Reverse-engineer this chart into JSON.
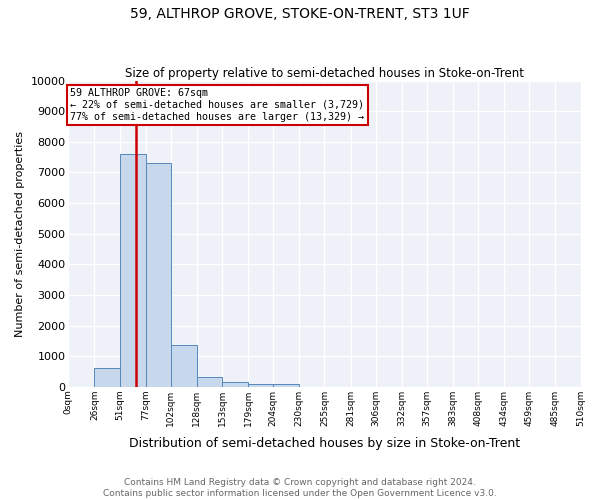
{
  "title": "59, ALTHROP GROVE, STOKE-ON-TRENT, ST3 1UF",
  "subtitle": "Size of property relative to semi-detached houses in Stoke-on-Trent",
  "xlabel": "Distribution of semi-detached houses by size in Stoke-on-Trent",
  "ylabel": "Number of semi-detached properties",
  "footnote": "Contains HM Land Registry data © Crown copyright and database right 2024.\nContains public sector information licensed under the Open Government Licence v3.0.",
  "annotation_line1": "59 ALTHROP GROVE: 67sqm",
  "annotation_line2": "← 22% of semi-detached houses are smaller (3,729)",
  "annotation_line3": "77% of semi-detached houses are larger (13,329) →",
  "property_size": 67,
  "bin_edges": [
    0,
    26,
    51,
    77,
    102,
    128,
    153,
    179,
    204,
    230,
    255,
    281,
    306,
    332,
    357,
    383,
    408,
    434,
    459,
    485,
    510
  ],
  "bar_heights": [
    0,
    600,
    7600,
    7300,
    1350,
    310,
    150,
    100,
    80,
    0,
    0,
    0,
    0,
    0,
    0,
    0,
    0,
    0,
    0,
    0
  ],
  "bar_color": "#c8d8ec",
  "bar_edge_color": "#5588bb",
  "property_line_color": "#cc0000",
  "annotation_box_edge_color": "#cc0000",
  "ylim": [
    0,
    10000
  ],
  "yticks": [
    0,
    1000,
    2000,
    3000,
    4000,
    5000,
    6000,
    7000,
    8000,
    9000,
    10000
  ],
  "xtick_labels": [
    "0sqm",
    "26sqm",
    "51sqm",
    "77sqm",
    "102sqm",
    "128sqm",
    "153sqm",
    "179sqm",
    "204sqm",
    "230sqm",
    "255sqm",
    "281sqm",
    "306sqm",
    "332sqm",
    "357sqm",
    "383sqm",
    "408sqm",
    "434sqm",
    "459sqm",
    "485sqm",
    "510sqm"
  ],
  "background_color": "#eef2f8",
  "grid_color": "#ffffff",
  "title_fontsize": 10,
  "subtitle_fontsize": 8.5,
  "ylabel_fontsize": 8,
  "xlabel_fontsize": 9,
  "footnote_fontsize": 6.5,
  "ytick_fontsize": 8,
  "xtick_fontsize": 6.5
}
